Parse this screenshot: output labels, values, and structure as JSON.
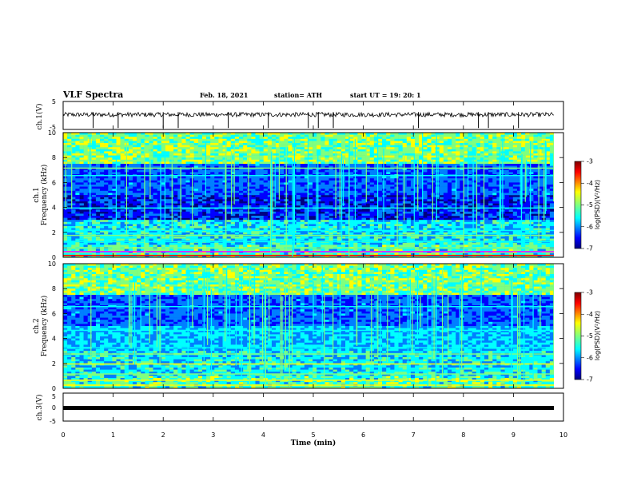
{
  "header": {
    "title": "VLF Spectra",
    "date": "Feb. 18, 2021",
    "station": "station= ATH",
    "start": "start  UT =   19: 20: 1"
  },
  "chart_data": [
    {
      "type": "line",
      "name": "ch1-voltage",
      "ylabel": "ch.1(V)",
      "ylim": [
        -5,
        5
      ],
      "yticks": [
        "5",
        "-5"
      ],
      "xlim": [
        0,
        10
      ],
      "baseline": 0.3
    },
    {
      "type": "heatmap",
      "name": "ch1-spectrogram",
      "ylabel": "ch.1\nFrequency (kHz)",
      "ylabel_lines": [
        "ch.1",
        "Frequency (kHz)"
      ],
      "ylim": [
        0,
        10
      ],
      "yticks": [
        "0",
        "2",
        "4",
        "6",
        "8",
        "10"
      ],
      "xlim": [
        0,
        10
      ],
      "colorbar": {
        "label": "log(PSD)(V²/Hz)",
        "ticks": [
          "-3",
          "-4",
          "-5",
          "-6",
          "-7"
        ],
        "range": [
          -7,
          -3
        ]
      }
    },
    {
      "type": "heatmap",
      "name": "ch2-spectrogram",
      "ylabel": "ch.2\nFrequency (kHz)",
      "ylabel_lines": [
        "ch.2",
        "Frequency (kHz)"
      ],
      "ylim": [
        0,
        10
      ],
      "yticks": [
        "0",
        "2",
        "4",
        "6",
        "8",
        "10"
      ],
      "xlim": [
        0,
        10
      ],
      "colorbar": {
        "label": "log(PSD)(V²/Hz)",
        "ticks": [
          "-3",
          "-4",
          "-5",
          "-6",
          "-7"
        ],
        "range": [
          -7,
          -3
        ]
      }
    },
    {
      "type": "line",
      "name": "ch3-voltage",
      "ylabel": "ch.3(V)",
      "ylim": [
        -5,
        5
      ],
      "yticks": [
        "5",
        "0",
        "-5"
      ],
      "xlim": [
        0,
        10
      ],
      "baseline": 0.3
    }
  ],
  "x_axis": {
    "label": "Time  (min)",
    "ticks": [
      "0",
      "1",
      "2",
      "3",
      "4",
      "5",
      "6",
      "7",
      "8",
      "9",
      "10"
    ],
    "range": [
      0,
      10
    ]
  },
  "colors": {
    "background": "#000080",
    "jet": [
      "#00007f",
      "#0000ff",
      "#007fff",
      "#00ffff",
      "#7fff7f",
      "#ffff00",
      "#ff7f00",
      "#ff0000",
      "#7f0000"
    ]
  }
}
